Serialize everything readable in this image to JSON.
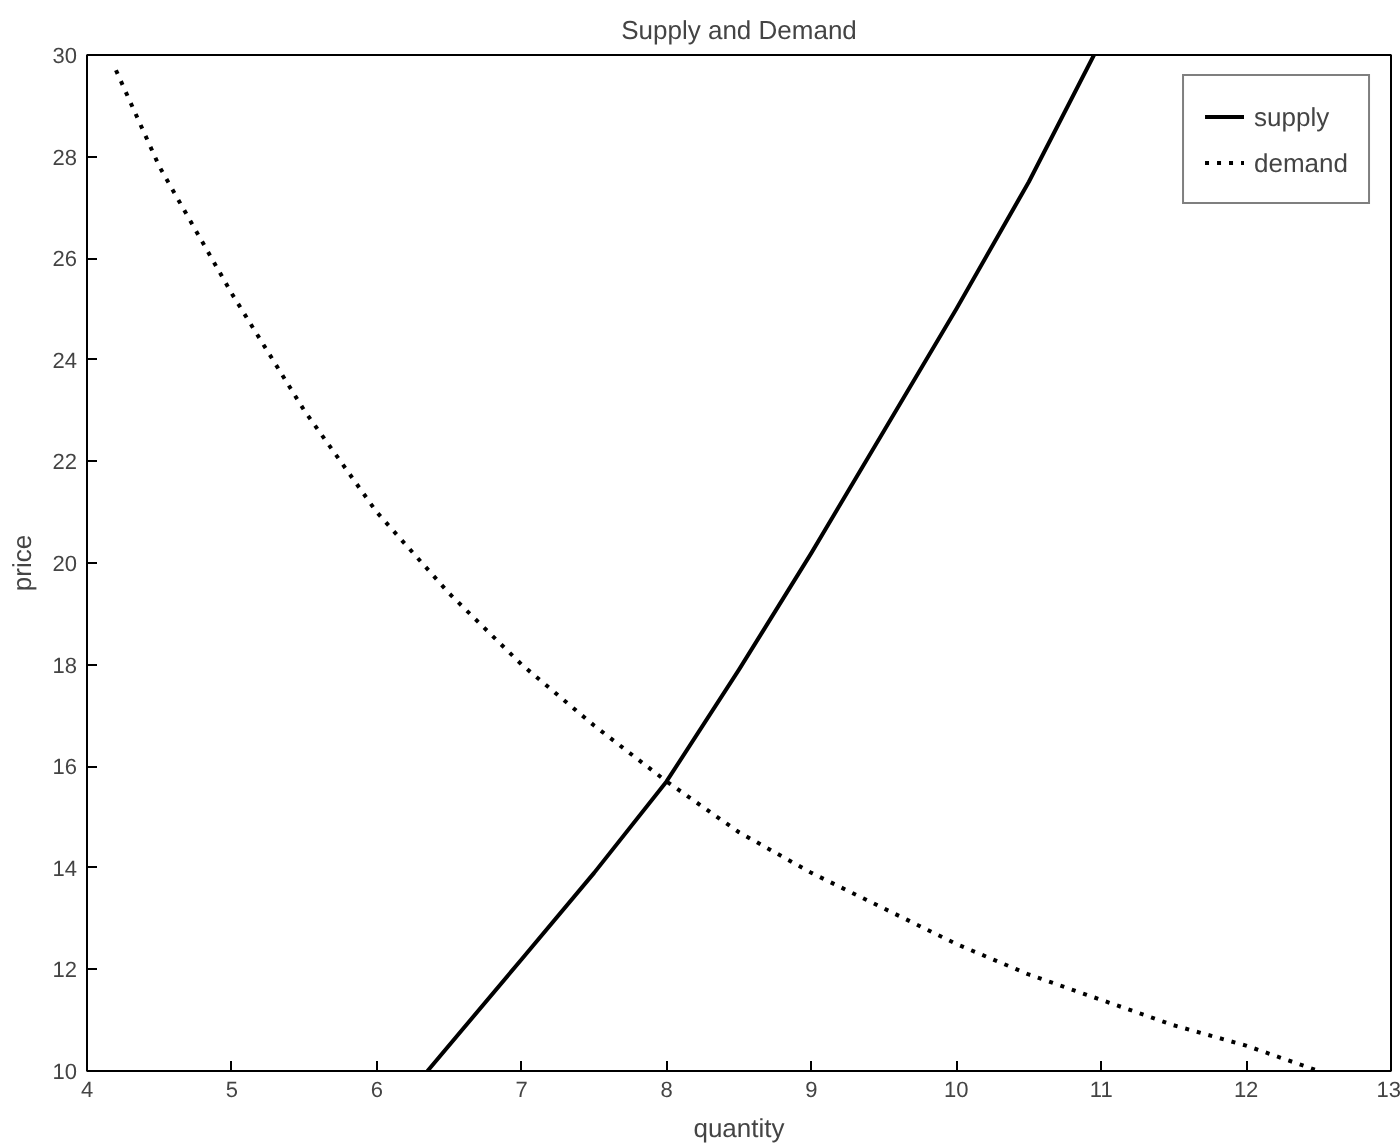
{
  "chart_data": {
    "type": "line",
    "title": "Supply and Demand",
    "xlabel": "quantity",
    "ylabel": "price",
    "xlim": [
      4,
      13
    ],
    "ylim": [
      10,
      30
    ],
    "xticks": [
      4,
      5,
      6,
      7,
      8,
      9,
      10,
      11,
      12,
      13
    ],
    "yticks": [
      10,
      12,
      14,
      16,
      18,
      20,
      22,
      24,
      26,
      28,
      30
    ],
    "grid": false,
    "legend": "top right",
    "series": [
      {
        "name": "supply",
        "color": "#000000",
        "line_style": "solid",
        "x": [
          6.35,
          7,
          7.5,
          8,
          8.5,
          9,
          9.5,
          10,
          10.5,
          10.95
        ],
        "values": [
          10,
          12.2,
          13.9,
          15.7,
          17.9,
          20.2,
          22.6,
          25,
          27.5,
          30
        ]
      },
      {
        "name": "demand",
        "color": "#000000",
        "line_style": "dotted",
        "x": [
          4.2,
          4.5,
          5,
          5.5,
          6,
          6.5,
          7,
          7.5,
          8,
          8.5,
          9,
          9.5,
          10,
          10.5,
          11,
          11.5,
          12,
          12.5
        ],
        "values": [
          29.7,
          27.8,
          25.3,
          23,
          21,
          19.4,
          18,
          16.8,
          15.7,
          14.7,
          13.9,
          13.2,
          12.5,
          11.9,
          11.4,
          10.9,
          10.5,
          10
        ]
      }
    ]
  }
}
